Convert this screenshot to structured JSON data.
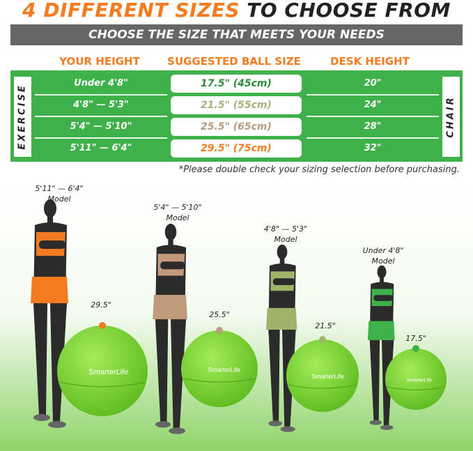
{
  "title": {
    "highlight": "4 DIFFERENT SIZES",
    "rest": "TO CHOOSE FROM"
  },
  "subtitle": "CHOOSE THE SIZE THAT MEETS YOUR NEEDS",
  "headers": [
    "YOUR HEIGHT",
    "SUGGESTED BALL SIZE",
    "DESK HEIGHT"
  ],
  "side_labels": {
    "left": "EXERCISE",
    "right": "CHAIR"
  },
  "rows": [
    {
      "height": "Under 4'8\"",
      "ball": "17.5\" (45cm)",
      "desk": "20\"",
      "color": "#2e8b3a"
    },
    {
      "height": "4'8\" — 5'3\"",
      "ball": "21.5\" (55cm)",
      "desk": "24\"",
      "color": "#a6b27a"
    },
    {
      "height": "5'4\" — 5'10\"",
      "ball": "25.5\" (65cm)",
      "desk": "28\"",
      "color": "#b89a7e"
    },
    {
      "height": "5'11\" — 6'4\"",
      "ball": "29.5\" (75cm)",
      "desk": "32\"",
      "color": "#f47b20"
    }
  ],
  "note": "*Please double check your sizing selection before purchasing.",
  "models": [
    {
      "height": "5'11\" — 6'4\"",
      "label": "Model",
      "ball": "29.5\"",
      "top_color": "#f47b20"
    },
    {
      "height": "5'4\" — 5'10\"",
      "label": "Model",
      "ball": "25.5\"",
      "top_color": "#c09a7a"
    },
    {
      "height": "4'8\" — 5'3\"",
      "label": "Model",
      "ball": "21.5\"",
      "top_color": "#9fb46a"
    },
    {
      "height": "Under 4'8\"",
      "label": "Model",
      "ball": "17.5\"",
      "top_color": "#3fb14a"
    }
  ],
  "brand": "SmarterLife",
  "colors": {
    "orange": "#f47b20",
    "green": "#3fb14a",
    "gray": "#666666",
    "ball": "#7ed321"
  }
}
